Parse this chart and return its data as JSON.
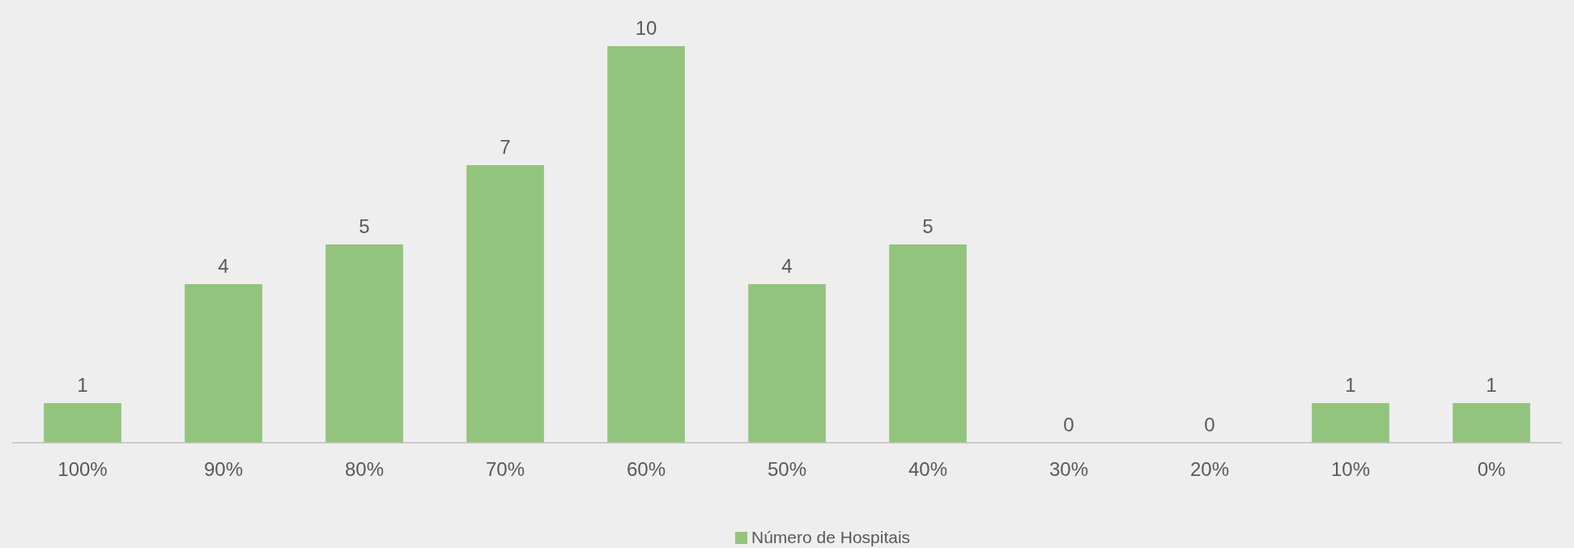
{
  "chart_data": {
    "type": "bar",
    "categories": [
      "100%",
      "90%",
      "80%",
      "70%",
      "60%",
      "50%",
      "40%",
      "30%",
      "20%",
      "10%",
      "0%"
    ],
    "series": [
      {
        "name": "Número de Hospitais",
        "color": "#93c47d",
        "values": [
          1,
          4,
          5,
          7,
          10,
          4,
          5,
          0,
          0,
          1,
          1
        ]
      }
    ],
    "data_labels": true,
    "legend": "bottom",
    "grid": false
  }
}
